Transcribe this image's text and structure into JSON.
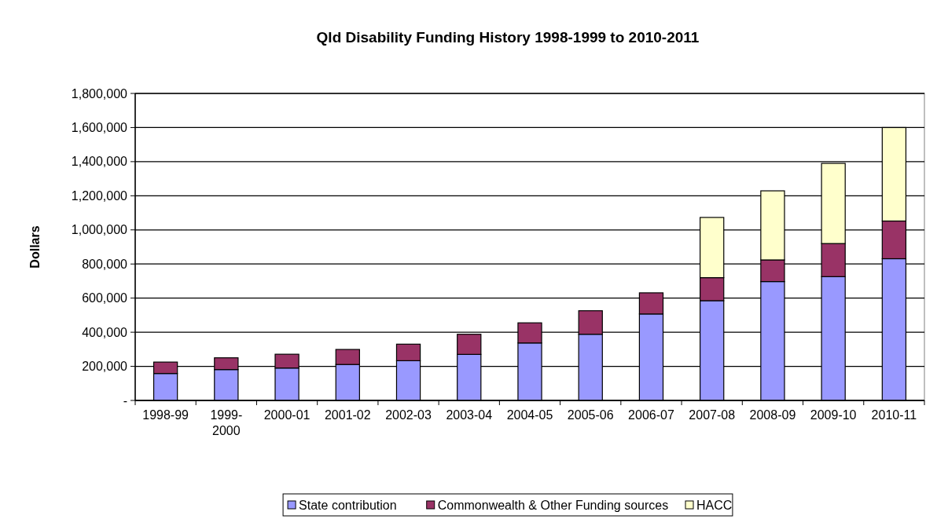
{
  "chart_data": {
    "type": "bar",
    "title": "Qld Disability Funding History 1998-1999 to 2010-2011",
    "ylabel": "Dollars",
    "categories": [
      "1998-99",
      "1999-2000",
      "2000-01",
      "2001-02",
      "2002-03",
      "2003-04",
      "2004-05",
      "2005-06",
      "2006-07",
      "2007-08",
      "2008-09",
      "2009-10",
      "2010-11"
    ],
    "stacked": true,
    "series": [
      {
        "name": "State contribution",
        "color": "#9999ff",
        "values": [
          158000,
          181000,
          190000,
          211000,
          233000,
          270000,
          337000,
          388000,
          507000,
          585000,
          697000,
          726000,
          831000
        ]
      },
      {
        "name": "Commonwealth & Other Funding sources",
        "color": "#993366",
        "values": [
          67000,
          69000,
          81000,
          88000,
          97000,
          118000,
          118000,
          138000,
          124000,
          135000,
          127000,
          194000,
          221000
        ]
      },
      {
        "name": "HACC",
        "color": "#ffffcc",
        "values": [
          null,
          null,
          null,
          null,
          null,
          null,
          null,
          null,
          null,
          353000,
          405000,
          470000,
          548000
        ]
      }
    ],
    "ylim": [
      0,
      1800000
    ],
    "yticks": [
      {
        "value": 0,
        "label": "-"
      },
      {
        "value": 200000,
        "label": "200,000"
      },
      {
        "value": 400000,
        "label": "400,000"
      },
      {
        "value": 600000,
        "label": "600,000"
      },
      {
        "value": 800000,
        "label": "800,000"
      },
      {
        "value": 1000000,
        "label": "1,000,000"
      },
      {
        "value": 1200000,
        "label": "1,200,000"
      },
      {
        "value": 1400000,
        "label": "1,400,000"
      },
      {
        "value": 1600000,
        "label": "1,600,000"
      },
      {
        "value": 1800000,
        "label": "1,800,000"
      }
    ],
    "grid": "y",
    "legend": "bottom"
  }
}
